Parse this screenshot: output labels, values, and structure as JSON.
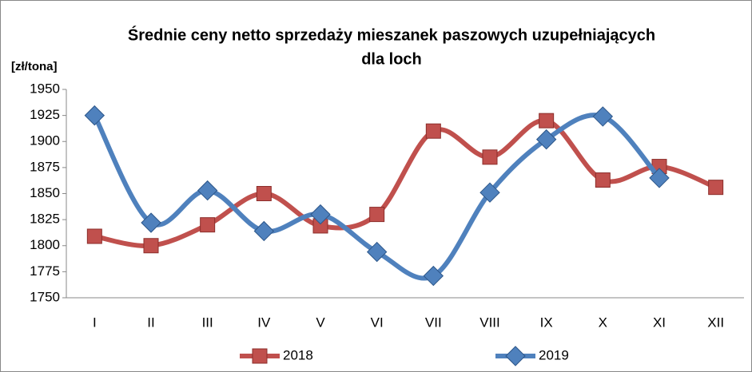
{
  "chart_data": {
    "type": "line",
    "title": [
      "Średnie ceny netto sprzedaży mieszanek paszowych uzupełniających",
      "dla loch"
    ],
    "y_label": "[zł/tona]",
    "categories": [
      "I",
      "II",
      "III",
      "IV",
      "V",
      "VI",
      "VII",
      "VIII",
      "IX",
      "X",
      "XI",
      "XII"
    ],
    "series": [
      {
        "name": "2018",
        "color": "#c0504d",
        "marker": "square",
        "values": [
          1809,
          1800,
          1820,
          1850,
          1819,
          1830,
          1910,
          1885,
          1920,
          1863,
          1876,
          1856
        ]
      },
      {
        "name": "2019",
        "color": "#4f81bd",
        "marker": "diamond",
        "values": [
          1925,
          1822,
          1853,
          1814,
          1830,
          1794,
          1771,
          1851,
          1902,
          1924,
          1865,
          null
        ]
      }
    ],
    "ylim": [
      1750,
      1950
    ],
    "yticks": [
      1750,
      1775,
      1800,
      1825,
      1850,
      1875,
      1900,
      1925,
      1950
    ],
    "smooth": true,
    "grid": false,
    "legend": "bottom"
  }
}
